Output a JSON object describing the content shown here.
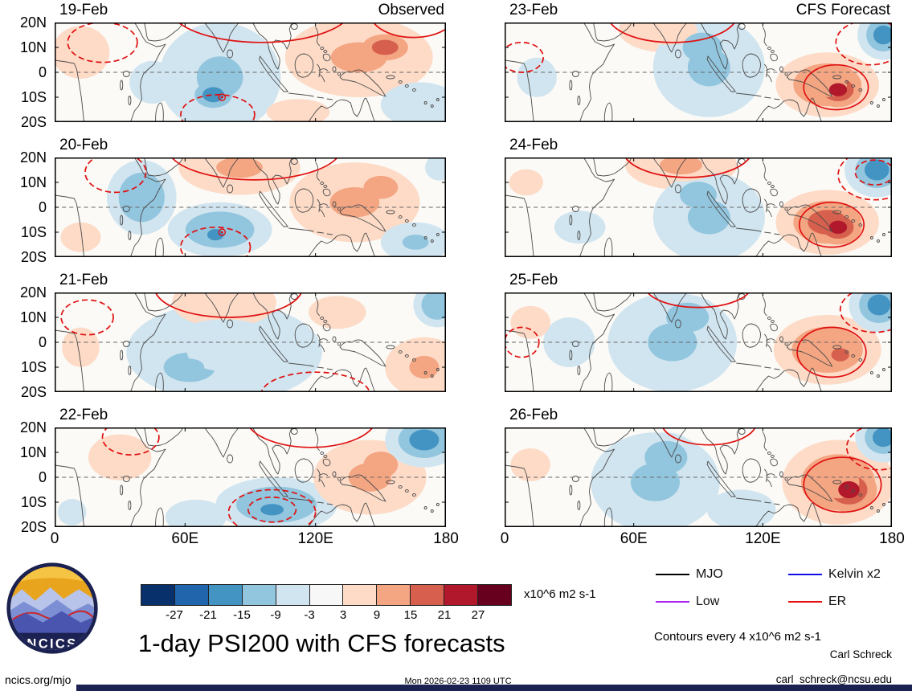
{
  "title": "1-day PSI200 with CFS forecasts",
  "branding": {
    "logo_text": "NCICS"
  },
  "footer": {
    "site": "ncics.org/mjo",
    "timestamp": "Mon 2026-02-23 1109 UTC",
    "email": "carl_schreck@ncsu.edu",
    "credit": "Carl Schreck"
  },
  "notes": {
    "contour_note": "Contours every 4 x10^6 m2 s-1"
  },
  "legend": {
    "items": [
      {
        "label": "MJO",
        "color": "#000000"
      },
      {
        "label": "Kelvin x2",
        "color": "#1010e6"
      },
      {
        "label": "Low",
        "color": "#aa22ee"
      },
      {
        "label": "ER",
        "color": "#e61212"
      }
    ]
  },
  "colorbar": {
    "units": "x10^6 m2 s-1",
    "tick_labels": [
      "-27",
      "-21",
      "-15",
      "-9",
      "-3",
      "3",
      "9",
      "15",
      "21",
      "27"
    ],
    "colors": [
      "#08306b",
      "#2166ac",
      "#4393c3",
      "#92c5de",
      "#d1e5f0",
      "#f7f7f7",
      "#fddbc7",
      "#f4a582",
      "#d6604d",
      "#b2182b",
      "#67001f"
    ]
  },
  "chart_data": {
    "type": "heatmap",
    "variable": "200-hPa streamfunction (PSI200) anomalies, observed and CFS forecast",
    "units": "x10^6 m2 s-1",
    "x_axis": {
      "ticks": [
        "0",
        "60E",
        "120E",
        "180"
      ],
      "range_lon": [
        0,
        180
      ]
    },
    "y_axis": {
      "ticks": [
        "20N",
        "10N",
        "0",
        "10S",
        "20S"
      ],
      "range_lat": [
        20,
        -20
      ]
    },
    "shading_levels": [
      -27,
      -21,
      -15,
      -9,
      -3,
      3,
      9,
      15,
      21,
      27
    ],
    "contour_interval": 4,
    "columns": [
      {
        "heading": "Observed",
        "panel_indexes": [
          0,
          1,
          2,
          3
        ]
      },
      {
        "heading": "CFS Forecast",
        "panel_indexes": [
          4,
          5,
          6,
          7
        ]
      }
    ],
    "panels": [
      {
        "date": "19-Feb",
        "column": "Observed",
        "anomalies": [
          {
            "lon": 12,
            "lat": 8,
            "rlon": 20,
            "rlat": 16,
            "value": 6
          },
          {
            "lon": 45,
            "lat": -4,
            "rlon": 16,
            "rlat": 13,
            "value": -6
          },
          {
            "lon": 76,
            "lat": -2,
            "rlon": 28,
            "rlat": 22,
            "value": -10
          },
          {
            "lon": 73,
            "lat": -9,
            "rlon": 13,
            "rlat": 8,
            "value": -19
          },
          {
            "lon": 140,
            "lat": 6,
            "rlon": 34,
            "rlat": 16,
            "value": 10
          },
          {
            "lon": 152,
            "lat": 10,
            "rlon": 16,
            "rlat": 8,
            "value": 16
          },
          {
            "lon": 168,
            "lat": -13,
            "rlon": 18,
            "rlat": 9,
            "value": -8
          },
          {
            "lon": 112,
            "lat": -16,
            "rlon": 22,
            "rlat": 8,
            "value": 6
          }
        ],
        "red_contours": [
          {
            "lon": 95,
            "lat": 26,
            "rlon": 42,
            "rlat": 14,
            "style": "solid"
          },
          {
            "lon": 165,
            "lat": 24,
            "rlon": 20,
            "rlat": 10,
            "style": "solid"
          },
          {
            "lon": 22,
            "lat": 12,
            "rlon": 16,
            "rlat": 8,
            "style": "dashed"
          },
          {
            "lon": 75,
            "lat": -17,
            "rlon": 17,
            "rlat": 8,
            "style": "dashed"
          }
        ],
        "storm_marker": {
          "lon": 77,
          "lat": -10
        }
      },
      {
        "date": "20-Feb",
        "column": "Observed",
        "anomalies": [
          {
            "lon": 40,
            "lat": 4,
            "rlon": 16,
            "rlat": 15,
            "value": -14
          },
          {
            "lon": 12,
            "lat": -12,
            "rlon": 14,
            "rlat": 9,
            "value": 5
          },
          {
            "lon": 85,
            "lat": 16,
            "rlon": 28,
            "rlat": 11,
            "value": 10
          },
          {
            "lon": 76,
            "lat": -9,
            "rlon": 24,
            "rlat": 11,
            "value": -12
          },
          {
            "lon": 74,
            "lat": -11,
            "rlon": 10,
            "rlat": 6,
            "value": -17
          },
          {
            "lon": 138,
            "lat": 2,
            "rlon": 30,
            "rlat": 16,
            "value": 10
          },
          {
            "lon": 150,
            "lat": 8,
            "rlon": 12,
            "rlat": 7,
            "value": 14
          },
          {
            "lon": 166,
            "lat": -14,
            "rlon": 16,
            "rlat": 8,
            "value": -10
          },
          {
            "lon": 177,
            "lat": 16,
            "rlon": 10,
            "rlat": 8,
            "value": -6
          }
        ],
        "red_contours": [
          {
            "lon": 92,
            "lat": 24,
            "rlon": 40,
            "rlat": 13,
            "style": "solid"
          },
          {
            "lon": 28,
            "lat": 14,
            "rlon": 14,
            "rlat": 8,
            "style": "dashed"
          },
          {
            "lon": 74,
            "lat": -16,
            "rlon": 16,
            "rlat": 8,
            "style": "dashed"
          }
        ],
        "storm_marker": {
          "lon": 77,
          "lat": -10
        }
      },
      {
        "date": "21-Feb",
        "column": "Observed",
        "anomalies": [
          {
            "lon": 12,
            "lat": -2,
            "rlon": 13,
            "rlat": 12,
            "value": 4
          },
          {
            "lon": 78,
            "lat": -4,
            "rlon": 45,
            "rlat": 20,
            "value": -7
          },
          {
            "lon": 62,
            "lat": -10,
            "rlon": 18,
            "rlat": 9,
            "value": -12
          },
          {
            "lon": 78,
            "lat": 16,
            "rlon": 24,
            "rlat": 10,
            "value": 8
          },
          {
            "lon": 130,
            "lat": 12,
            "rlon": 20,
            "rlat": 10,
            "value": 5
          },
          {
            "lon": 170,
            "lat": -10,
            "rlon": 18,
            "rlat": 12,
            "value": 10
          },
          {
            "lon": 176,
            "lat": 15,
            "rlon": 11,
            "rlat": 9,
            "value": -14
          }
        ],
        "red_contours": [
          {
            "lon": 80,
            "lat": 22,
            "rlon": 34,
            "rlat": 12,
            "style": "solid"
          },
          {
            "lon": 120,
            "lat": -21,
            "rlon": 25,
            "rlat": 9,
            "style": "dashed"
          },
          {
            "lon": 15,
            "lat": 10,
            "rlon": 12,
            "rlat": 7,
            "style": "dashed"
          }
        ]
      },
      {
        "date": "22-Feb",
        "column": "Observed",
        "anomalies": [
          {
            "lon": 30,
            "lat": 8,
            "rlon": 22,
            "rlat": 14,
            "value": 6
          },
          {
            "lon": 8,
            "lat": -14,
            "rlon": 10,
            "rlat": 8,
            "value": -5
          },
          {
            "lon": 65,
            "lat": -16,
            "rlon": 14,
            "rlat": 7,
            "value": -8
          },
          {
            "lon": 102,
            "lat": -11,
            "rlon": 28,
            "rlat": 11,
            "value": -12
          },
          {
            "lon": 100,
            "lat": -13,
            "rlon": 14,
            "rlat": 6,
            "value": -16
          },
          {
            "lon": 145,
            "lat": 0,
            "rlon": 26,
            "rlat": 15,
            "value": 10
          },
          {
            "lon": 150,
            "lat": 5,
            "rlon": 12,
            "rlat": 8,
            "value": 14
          },
          {
            "lon": 170,
            "lat": 15,
            "rlon": 18,
            "rlat": 11,
            "value": -16
          }
        ],
        "red_contours": [
          {
            "lon": 118,
            "lat": 24,
            "rlon": 30,
            "rlat": 12,
            "style": "solid"
          },
          {
            "lon": 100,
            "lat": -14,
            "rlon": 20,
            "rlat": 9,
            "style": "dashed"
          },
          {
            "lon": 100,
            "lat": -13,
            "rlon": 11,
            "rlat": 5,
            "style": "dashed"
          },
          {
            "lon": 35,
            "lat": 16,
            "rlon": 13,
            "rlat": 7,
            "style": "dashed"
          }
        ]
      },
      {
        "date": "23-Feb",
        "column": "CFS Forecast",
        "anomalies": [
          {
            "lon": 15,
            "lat": -2,
            "rlon": 14,
            "rlat": 12,
            "value": -4
          },
          {
            "lon": 75,
            "lat": 17,
            "rlon": 22,
            "rlat": 9,
            "value": 8
          },
          {
            "lon": 95,
            "lat": 2,
            "rlon": 26,
            "rlat": 20,
            "value": -9
          },
          {
            "lon": 92,
            "lat": 10,
            "rlon": 14,
            "rlat": 9,
            "value": -13
          },
          {
            "lon": 150,
            "lat": -5,
            "rlon": 24,
            "rlat": 13,
            "value": 13
          },
          {
            "lon": 155,
            "lat": -7,
            "rlon": 11,
            "rlat": 7,
            "value": 21
          },
          {
            "lon": 176,
            "lat": 15,
            "rlon": 12,
            "rlat": 10,
            "value": -17
          }
        ],
        "red_contours": [
          {
            "lon": 78,
            "lat": 23,
            "rlon": 30,
            "rlat": 11,
            "style": "solid"
          },
          {
            "lon": 154,
            "lat": -6,
            "rlon": 15,
            "rlat": 9,
            "style": "solid"
          },
          {
            "lon": 170,
            "lat": 12,
            "rlon": 16,
            "rlat": 9,
            "style": "dashed"
          },
          {
            "lon": 8,
            "lat": 6,
            "rlon": 10,
            "rlat": 6,
            "style": "dashed"
          }
        ]
      },
      {
        "date": "24-Feb",
        "column": "CFS Forecast",
        "anomalies": [
          {
            "lon": 10,
            "lat": 10,
            "rlon": 12,
            "rlat": 8,
            "value": 4
          },
          {
            "lon": 35,
            "lat": -8,
            "rlon": 18,
            "rlat": 10,
            "value": -5
          },
          {
            "lon": 82,
            "lat": 17,
            "rlon": 26,
            "rlat": 10,
            "value": 10
          },
          {
            "lon": 95,
            "lat": -4,
            "rlon": 26,
            "rlat": 18,
            "value": -9
          },
          {
            "lon": 90,
            "lat": 5,
            "rlon": 13,
            "rlat": 8,
            "value": -13
          },
          {
            "lon": 150,
            "lat": -6,
            "rlon": 24,
            "rlat": 13,
            "value": 15
          },
          {
            "lon": 155,
            "lat": -8,
            "rlon": 11,
            "rlat": 7,
            "value": 23
          },
          {
            "lon": 173,
            "lat": 15,
            "rlon": 15,
            "rlat": 11,
            "value": -19
          }
        ],
        "red_contours": [
          {
            "lon": 85,
            "lat": 23,
            "rlon": 30,
            "rlat": 11,
            "style": "solid"
          },
          {
            "lon": 152,
            "lat": -7,
            "rlon": 15,
            "rlat": 9,
            "style": "solid"
          },
          {
            "lon": 172,
            "lat": 13,
            "rlon": 17,
            "rlat": 10,
            "style": "dashed"
          },
          {
            "lon": 172,
            "lat": 14,
            "rlon": 9,
            "rlat": 5,
            "style": "dashed"
          }
        ]
      },
      {
        "date": "25-Feb",
        "column": "CFS Forecast",
        "anomalies": [
          {
            "lon": 12,
            "lat": 8,
            "rlon": 14,
            "rlat": 10,
            "value": 4
          },
          {
            "lon": 30,
            "lat": 0,
            "rlon": 12,
            "rlat": 10,
            "value": -8
          },
          {
            "lon": 78,
            "lat": 0,
            "rlon": 30,
            "rlat": 20,
            "value": -9
          },
          {
            "lon": 85,
            "lat": 10,
            "rlon": 15,
            "rlat": 9,
            "value": -13
          },
          {
            "lon": 150,
            "lat": -3,
            "rlon": 25,
            "rlat": 14,
            "value": 13
          },
          {
            "lon": 156,
            "lat": -5,
            "rlon": 11,
            "rlat": 7,
            "value": 19
          },
          {
            "lon": 174,
            "lat": 15,
            "rlon": 14,
            "rlat": 11,
            "value": -18
          }
        ],
        "red_contours": [
          {
            "lon": 90,
            "lat": 23,
            "rlon": 25,
            "rlat": 9,
            "style": "solid"
          },
          {
            "lon": 152,
            "lat": -4,
            "rlon": 16,
            "rlat": 10,
            "style": "solid"
          },
          {
            "lon": 172,
            "lat": 13,
            "rlon": 16,
            "rlat": 9,
            "style": "dashed"
          },
          {
            "lon": 8,
            "lat": 0,
            "rlon": 8,
            "rlat": 6,
            "style": "dashed"
          }
        ]
      },
      {
        "date": "26-Feb",
        "column": "CFS Forecast",
        "anomalies": [
          {
            "lon": 12,
            "lat": 5,
            "rlon": 14,
            "rlat": 10,
            "value": 4
          },
          {
            "lon": 70,
            "lat": -2,
            "rlon": 30,
            "rlat": 20,
            "value": -9
          },
          {
            "lon": 75,
            "lat": 8,
            "rlon": 15,
            "rlat": 10,
            "value": -12
          },
          {
            "lon": 110,
            "lat": -13,
            "rlon": 16,
            "rlat": 8,
            "value": -7
          },
          {
            "lon": 155,
            "lat": -2,
            "rlon": 26,
            "rlat": 17,
            "value": 13
          },
          {
            "lon": 160,
            "lat": -5,
            "rlon": 13,
            "rlat": 9,
            "value": 21
          },
          {
            "lon": 176,
            "lat": 16,
            "rlon": 13,
            "rlat": 10,
            "value": -19
          }
        ],
        "red_contours": [
          {
            "lon": 95,
            "lat": 22,
            "rlon": 22,
            "rlat": 9,
            "style": "solid"
          },
          {
            "lon": 157,
            "lat": -3,
            "rlon": 18,
            "rlat": 11,
            "style": "solid"
          },
          {
            "lon": 174,
            "lat": 12,
            "rlon": 15,
            "rlat": 9,
            "style": "dashed"
          }
        ]
      }
    ]
  }
}
